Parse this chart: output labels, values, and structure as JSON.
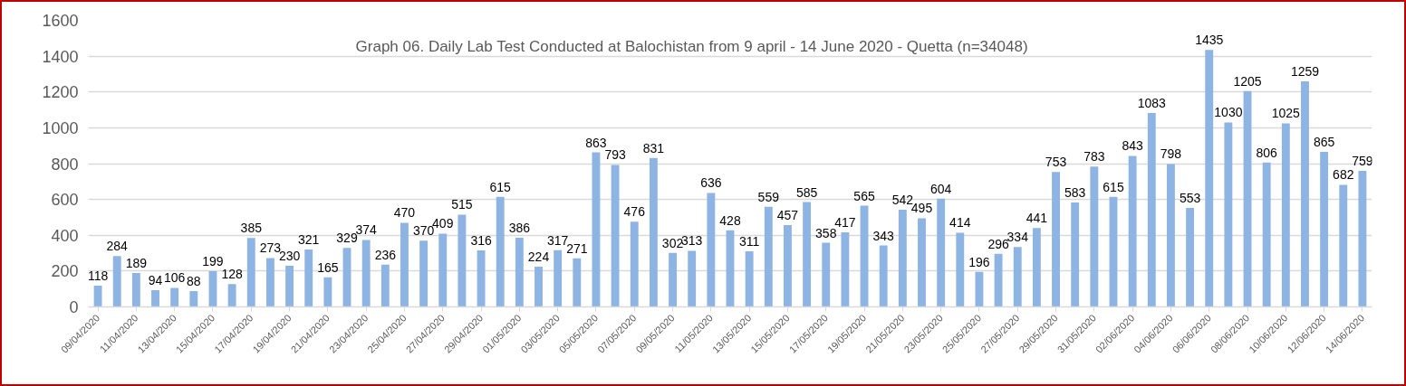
{
  "chart_data": {
    "type": "bar",
    "title": "Graph 06. Daily Lab Test Conducted at Balochistan from 9 april - 14 June 2020 - Quetta (n=34048)",
    "categories": [
      "09/04/2020",
      null,
      "11/04/2020",
      null,
      "13/04/2020",
      null,
      "15/04/2020",
      null,
      "17/04/2020",
      null,
      "19/04/2020",
      null,
      "21/04/2020",
      null,
      "23/04/2020",
      null,
      "25/04/2020",
      null,
      "27/04/2020",
      null,
      "29/04/2020",
      null,
      "01/05/2020",
      null,
      "03/05/2020",
      null,
      "05/05/2020",
      null,
      "07/05/2020",
      null,
      "09/05/2020",
      null,
      "11/05/2020",
      null,
      "13/05/2020",
      null,
      "15/05/2020",
      null,
      "17/05/2020",
      null,
      "19/05/2020",
      null,
      "21/05/2020",
      null,
      "23/05/2020",
      null,
      "25/05/2020",
      null,
      "27/05/2020",
      null,
      "29/05/2020",
      null,
      "31/05/2020",
      null,
      "02/06/2020",
      null,
      "04/06/2020",
      null,
      "06/06/2020",
      null,
      "08/06/2020",
      null,
      "10/06/2020",
      null,
      "12/06/2020",
      null,
      "14/06/2020"
    ],
    "values": [
      118,
      284,
      189,
      94,
      106,
      88,
      199,
      128,
      385,
      273,
      230,
      321,
      165,
      329,
      374,
      236,
      470,
      370,
      409,
      515,
      316,
      615,
      386,
      224,
      317,
      271,
      863,
      793,
      476,
      831,
      302,
      313,
      636,
      428,
      311,
      559,
      457,
      585,
      358,
      417,
      565,
      343,
      542,
      495,
      604,
      414,
      196,
      296,
      334,
      441,
      753,
      583,
      783,
      615,
      843,
      1083,
      798,
      553,
      1435,
      1030,
      1205,
      806,
      1025,
      1259,
      865,
      682,
      759
    ],
    "color": "#8eb4e3",
    "ylim": [
      0,
      1600
    ],
    "yticks": [
      0,
      200,
      400,
      600,
      800,
      1000,
      1200,
      1400,
      1600
    ],
    "grid": "y",
    "data_labels": true
  }
}
